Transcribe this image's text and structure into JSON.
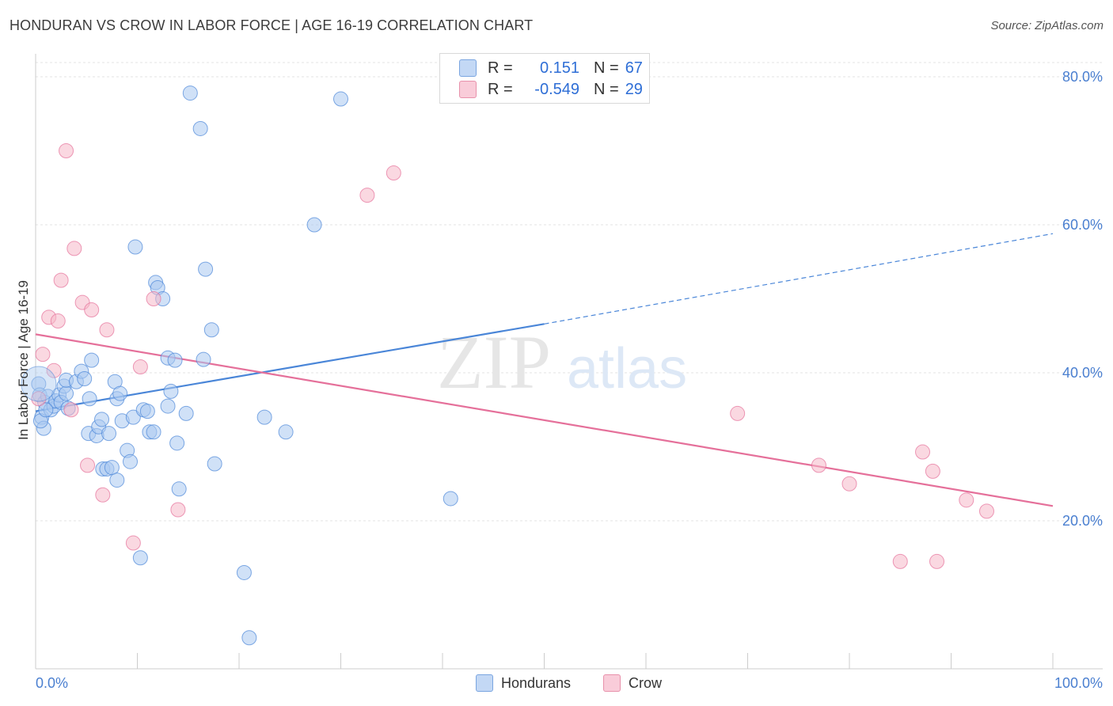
{
  "title": "HONDURAN VS CROW IN LABOR FORCE | AGE 16-19 CORRELATION CHART",
  "source": "Source: ZipAtlas.com",
  "watermark": {
    "zip": "ZIP",
    "atlas": "atlas"
  },
  "legend": {
    "rows": [
      {
        "r_label": "R =",
        "r_value": "0.151",
        "n_label": "N =",
        "n_value": "67",
        "color": "#aac9f0"
      },
      {
        "r_label": "R =",
        "r_value": "-0.549",
        "n_label": "N =",
        "n_value": "29",
        "color": "#f6b8c9"
      }
    ]
  },
  "bottom_legend": [
    {
      "label": "Hondurans",
      "color": "#aac9f0"
    },
    {
      "label": "Crow",
      "color": "#f6b8c9"
    }
  ],
  "chart_data": {
    "type": "scatter",
    "title": "HONDURAN VS CROW IN LABOR FORCE | AGE 16-19 CORRELATION CHART",
    "xlabel": "",
    "ylabel": "In Labor Force | Age 16-19",
    "xlim": [
      0,
      100
    ],
    "ylim": [
      0,
      80
    ],
    "x_tick_labels": [
      "0.0%",
      "100.0%"
    ],
    "y_ticks": [
      20,
      40,
      60,
      80
    ],
    "y_tick_labels": [
      "20.0%",
      "40.0%",
      "60.0%",
      "80.0%"
    ],
    "grid": true,
    "series": [
      {
        "name": "Hondurans",
        "color": "#4a86d8",
        "fill": "#aac9f0",
        "points": [
          [
            0.3,
            38.5
          ],
          [
            0.4,
            37.0
          ],
          [
            0.6,
            34.0
          ],
          [
            0.8,
            32.5
          ],
          [
            0.9,
            36.0
          ],
          [
            1.2,
            36.8
          ],
          [
            1.5,
            35.0
          ],
          [
            1.8,
            35.5
          ],
          [
            2.0,
            36.2
          ],
          [
            2.3,
            37.0
          ],
          [
            2.5,
            36.0
          ],
          [
            2.8,
            38.2
          ],
          [
            3.0,
            37.2
          ],
          [
            3.2,
            35.2
          ],
          [
            3.0,
            39.0
          ],
          [
            4.0,
            38.8
          ],
          [
            4.5,
            40.2
          ],
          [
            4.8,
            39.2
          ],
          [
            5.5,
            41.7
          ],
          [
            5.3,
            36.5
          ],
          [
            5.2,
            31.8
          ],
          [
            6.0,
            31.5
          ],
          [
            6.2,
            32.7
          ],
          [
            6.5,
            33.7
          ],
          [
            6.6,
            27.0
          ],
          [
            7.0,
            27.0
          ],
          [
            7.2,
            31.8
          ],
          [
            7.5,
            27.2
          ],
          [
            7.8,
            38.8
          ],
          [
            8.0,
            36.5
          ],
          [
            8.3,
            37.2
          ],
          [
            8.0,
            25.5
          ],
          [
            8.5,
            33.5
          ],
          [
            9.0,
            29.5
          ],
          [
            9.3,
            28.0
          ],
          [
            9.6,
            34.0
          ],
          [
            9.8,
            57.0
          ],
          [
            10.3,
            15.0
          ],
          [
            10.6,
            35.0
          ],
          [
            11.0,
            34.8
          ],
          [
            11.2,
            32.0
          ],
          [
            11.6,
            32.0
          ],
          [
            11.8,
            52.2
          ],
          [
            12.0,
            51.5
          ],
          [
            12.5,
            50.0
          ],
          [
            13.0,
            42.0
          ],
          [
            13.0,
            35.5
          ],
          [
            13.3,
            37.5
          ],
          [
            13.7,
            41.7
          ],
          [
            13.9,
            30.5
          ],
          [
            14.1,
            24.3
          ],
          [
            14.8,
            34.5
          ],
          [
            15.2,
            77.8
          ],
          [
            16.2,
            73.0
          ],
          [
            16.5,
            41.8
          ],
          [
            16.7,
            54.0
          ],
          [
            17.3,
            45.8
          ],
          [
            17.6,
            27.7
          ],
          [
            20.5,
            13.0
          ],
          [
            21.0,
            4.2
          ],
          [
            22.5,
            34.0
          ],
          [
            24.6,
            32.0
          ],
          [
            27.4,
            60.0
          ],
          [
            30.0,
            77.0
          ],
          [
            40.8,
            23.0
          ],
          [
            0.5,
            33.5
          ],
          [
            1.0,
            35.0
          ]
        ],
        "trend": {
          "x_solid": [
            0,
            50
          ],
          "y_solid": [
            34.8,
            46.6
          ],
          "x_dashed": [
            50,
            100
          ],
          "y_dashed": [
            46.6,
            58.8
          ]
        }
      },
      {
        "name": "Crow",
        "color": "#e5709a",
        "fill": "#f6b8c9",
        "points": [
          [
            0.3,
            36.5
          ],
          [
            0.7,
            42.5
          ],
          [
            1.3,
            47.5
          ],
          [
            1.8,
            40.3
          ],
          [
            2.2,
            47.0
          ],
          [
            2.5,
            52.5
          ],
          [
            3.0,
            70.0
          ],
          [
            3.5,
            35.0
          ],
          [
            3.8,
            56.8
          ],
          [
            4.6,
            49.5
          ],
          [
            5.1,
            27.5
          ],
          [
            5.5,
            48.5
          ],
          [
            6.6,
            23.5
          ],
          [
            7.0,
            45.8
          ],
          [
            9.6,
            17.0
          ],
          [
            10.3,
            40.8
          ],
          [
            11.6,
            50.0
          ],
          [
            14.0,
            21.5
          ],
          [
            32.6,
            64.0
          ],
          [
            35.2,
            67.0
          ],
          [
            69.0,
            34.5
          ],
          [
            77.0,
            27.5
          ],
          [
            80.0,
            25.0
          ],
          [
            85.0,
            14.5
          ],
          [
            87.2,
            29.3
          ],
          [
            88.2,
            26.7
          ],
          [
            88.6,
            14.5
          ],
          [
            91.5,
            22.8
          ],
          [
            93.5,
            21.3
          ]
        ],
        "trend": {
          "x_solid": [
            0,
            100
          ],
          "y_solid": [
            45.2,
            22.0
          ]
        }
      }
    ]
  }
}
